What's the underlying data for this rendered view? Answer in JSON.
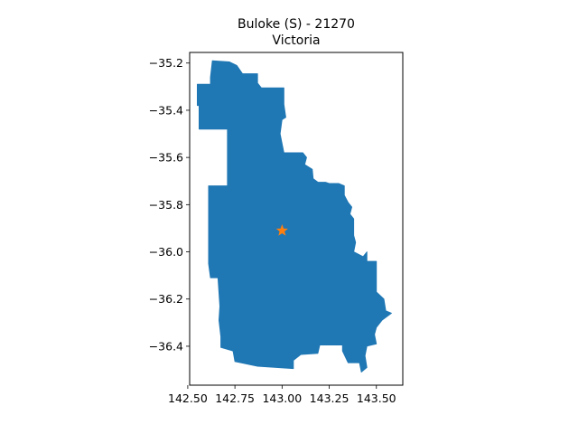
{
  "figure": {
    "title_line1": "Buloke (S) - 21270",
    "title_line2": "Victoria"
  },
  "colors": {
    "region_fill": "#1f77b4",
    "marker_fill": "#ff7f0e",
    "axes": "#000000",
    "background": "#ffffff"
  },
  "chart_data": {
    "type": "map",
    "title": "Buloke (S) - 21270\nVictoria",
    "xlim": [
      142.51,
      143.64
    ],
    "ylim": [
      -36.565,
      -35.155
    ],
    "x_ticks": [
      142.5,
      142.75,
      143.0,
      143.25,
      143.5
    ],
    "x_tick_labels": [
      "142.50",
      "142.75",
      "143.00",
      "143.25",
      "143.50"
    ],
    "y_ticks": [
      -35.2,
      -35.4,
      -35.6,
      -35.8,
      -36.0,
      -36.2,
      -36.4
    ],
    "y_tick_labels": [
      "−35.2",
      "−35.4",
      "−35.6",
      "−35.8",
      "−36.0",
      "−36.2",
      "−36.4"
    ],
    "marker": {
      "symbol": "star",
      "lon": 143.0,
      "lat": -35.91
    },
    "region": {
      "name": "Buloke (S)",
      "boundary": [
        [
          142.63,
          -35.19
        ],
        [
          142.72,
          -35.195
        ],
        [
          142.76,
          -35.21
        ],
        [
          142.79,
          -35.245
        ],
        [
          142.87,
          -35.245
        ],
        [
          142.87,
          -35.285
        ],
        [
          142.89,
          -35.305
        ],
        [
          143.01,
          -35.305
        ],
        [
          143.01,
          -35.375
        ],
        [
          143.02,
          -35.43
        ],
        [
          143.0,
          -35.44
        ],
        [
          142.99,
          -35.5
        ],
        [
          143.01,
          -35.58
        ],
        [
          143.11,
          -35.58
        ],
        [
          143.13,
          -35.6
        ],
        [
          143.12,
          -35.63
        ],
        [
          143.16,
          -35.65
        ],
        [
          143.165,
          -35.69
        ],
        [
          143.19,
          -35.705
        ],
        [
          143.23,
          -35.705
        ],
        [
          143.25,
          -35.71
        ],
        [
          143.3,
          -35.71
        ],
        [
          143.33,
          -35.72
        ],
        [
          143.33,
          -35.76
        ],
        [
          143.35,
          -35.79
        ],
        [
          143.37,
          -35.81
        ],
        [
          143.36,
          -35.84
        ],
        [
          143.38,
          -35.86
        ],
        [
          143.38,
          -35.93
        ],
        [
          143.39,
          -35.96
        ],
        [
          143.38,
          -36.0
        ],
        [
          143.43,
          -36.02
        ],
        [
          143.45,
          -36.0
        ],
        [
          143.45,
          -36.04
        ],
        [
          143.5,
          -36.04
        ],
        [
          143.5,
          -36.17
        ],
        [
          143.54,
          -36.2
        ],
        [
          143.55,
          -36.25
        ],
        [
          143.58,
          -36.26
        ],
        [
          143.53,
          -36.29
        ],
        [
          143.5,
          -36.32
        ],
        [
          143.49,
          -36.35
        ],
        [
          143.5,
          -36.39
        ],
        [
          143.45,
          -36.4
        ],
        [
          143.44,
          -36.44
        ],
        [
          143.45,
          -36.49
        ],
        [
          143.42,
          -36.51
        ],
        [
          143.41,
          -36.47
        ],
        [
          143.35,
          -36.47
        ],
        [
          143.32,
          -36.42
        ],
        [
          143.32,
          -36.395
        ],
        [
          143.2,
          -36.395
        ],
        [
          143.19,
          -36.43
        ],
        [
          143.1,
          -36.435
        ],
        [
          143.06,
          -36.46
        ],
        [
          143.06,
          -36.495
        ],
        [
          142.87,
          -36.485
        ],
        [
          142.75,
          -36.465
        ],
        [
          142.74,
          -36.42
        ],
        [
          142.675,
          -36.405
        ],
        [
          142.675,
          -36.36
        ],
        [
          142.665,
          -36.29
        ],
        [
          142.67,
          -36.23
        ],
        [
          142.66,
          -36.11
        ],
        [
          142.62,
          -36.11
        ],
        [
          142.61,
          -36.05
        ],
        [
          142.61,
          -35.72
        ],
        [
          142.71,
          -35.72
        ],
        [
          142.71,
          -35.48
        ],
        [
          142.56,
          -35.48
        ],
        [
          142.56,
          -35.38
        ],
        [
          142.55,
          -35.38
        ],
        [
          142.55,
          -35.29
        ],
        [
          142.62,
          -35.29
        ],
        [
          142.62,
          -35.26
        ]
      ]
    }
  }
}
